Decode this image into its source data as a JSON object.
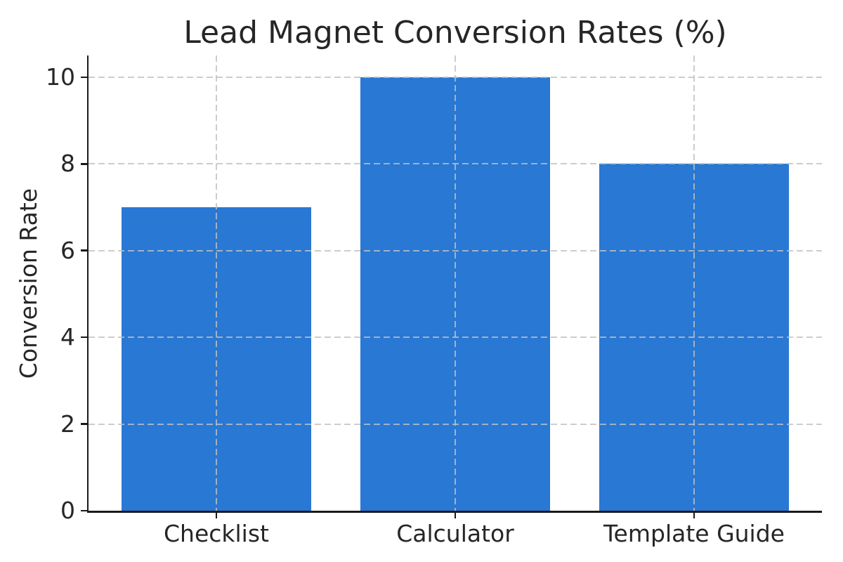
{
  "chart_data": {
    "type": "bar",
    "title": "Lead Magnet Conversion Rates (%)",
    "xlabel": "",
    "ylabel": "Conversion Rate",
    "categories": [
      "Checklist",
      "Calculator",
      "Template Guide"
    ],
    "values": [
      7,
      10,
      8
    ],
    "yticks": [
      0,
      2,
      4,
      6,
      8,
      10
    ],
    "ylim": [
      0,
      10.5
    ],
    "grid": "both axes, dashed, drawn above bars",
    "legend": "none",
    "colors": {
      "bar": "#2878d4",
      "gridline": "#c0c0c0",
      "spine": "#1a1a1a",
      "text": "#262626",
      "background": "#ffffff"
    }
  }
}
